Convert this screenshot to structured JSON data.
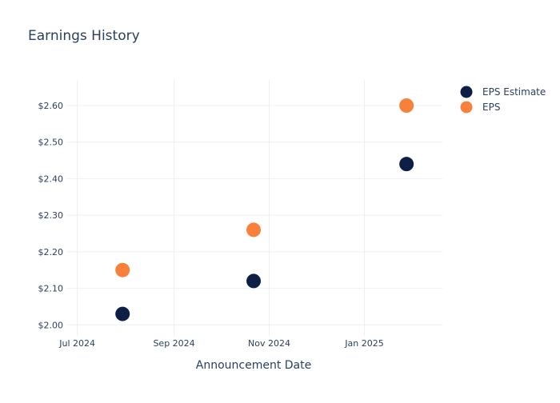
{
  "chart_data": {
    "type": "scatter",
    "title": "Earnings History",
    "xlabel": "Announcement Date",
    "ylabel": "",
    "x_ticks": [
      "2024-07-01",
      "2024-09-01",
      "2024-11-01",
      "2025-01-01"
    ],
    "x_tick_labels": [
      "Jul 2024",
      "Sep 2024",
      "Nov 2024",
      "Jan 2025"
    ],
    "xlim": [
      "2024-06-24",
      "2025-02-20"
    ],
    "y_ticks": [
      2.0,
      2.1,
      2.2,
      2.3,
      2.4,
      2.5,
      2.6
    ],
    "y_tick_labels": [
      "$2.00",
      "$2.10",
      "$2.20",
      "$2.30",
      "$2.40",
      "$2.50",
      "$2.60"
    ],
    "ylim": [
      1.97,
      2.67
    ],
    "grid": true,
    "legend_position": "top-right",
    "series": [
      {
        "name": "EPS Estimate",
        "color": "#0d1f44",
        "points": [
          {
            "x": "2024-07-30",
            "y": 2.03
          },
          {
            "x": "2024-10-22",
            "y": 2.12
          },
          {
            "x": "2025-01-28",
            "y": 2.44
          }
        ]
      },
      {
        "name": "EPS",
        "color": "#f7803a",
        "points": [
          {
            "x": "2024-07-30",
            "y": 2.15
          },
          {
            "x": "2024-10-22",
            "y": 2.26
          },
          {
            "x": "2025-01-28",
            "y": 2.6
          }
        ]
      }
    ]
  }
}
